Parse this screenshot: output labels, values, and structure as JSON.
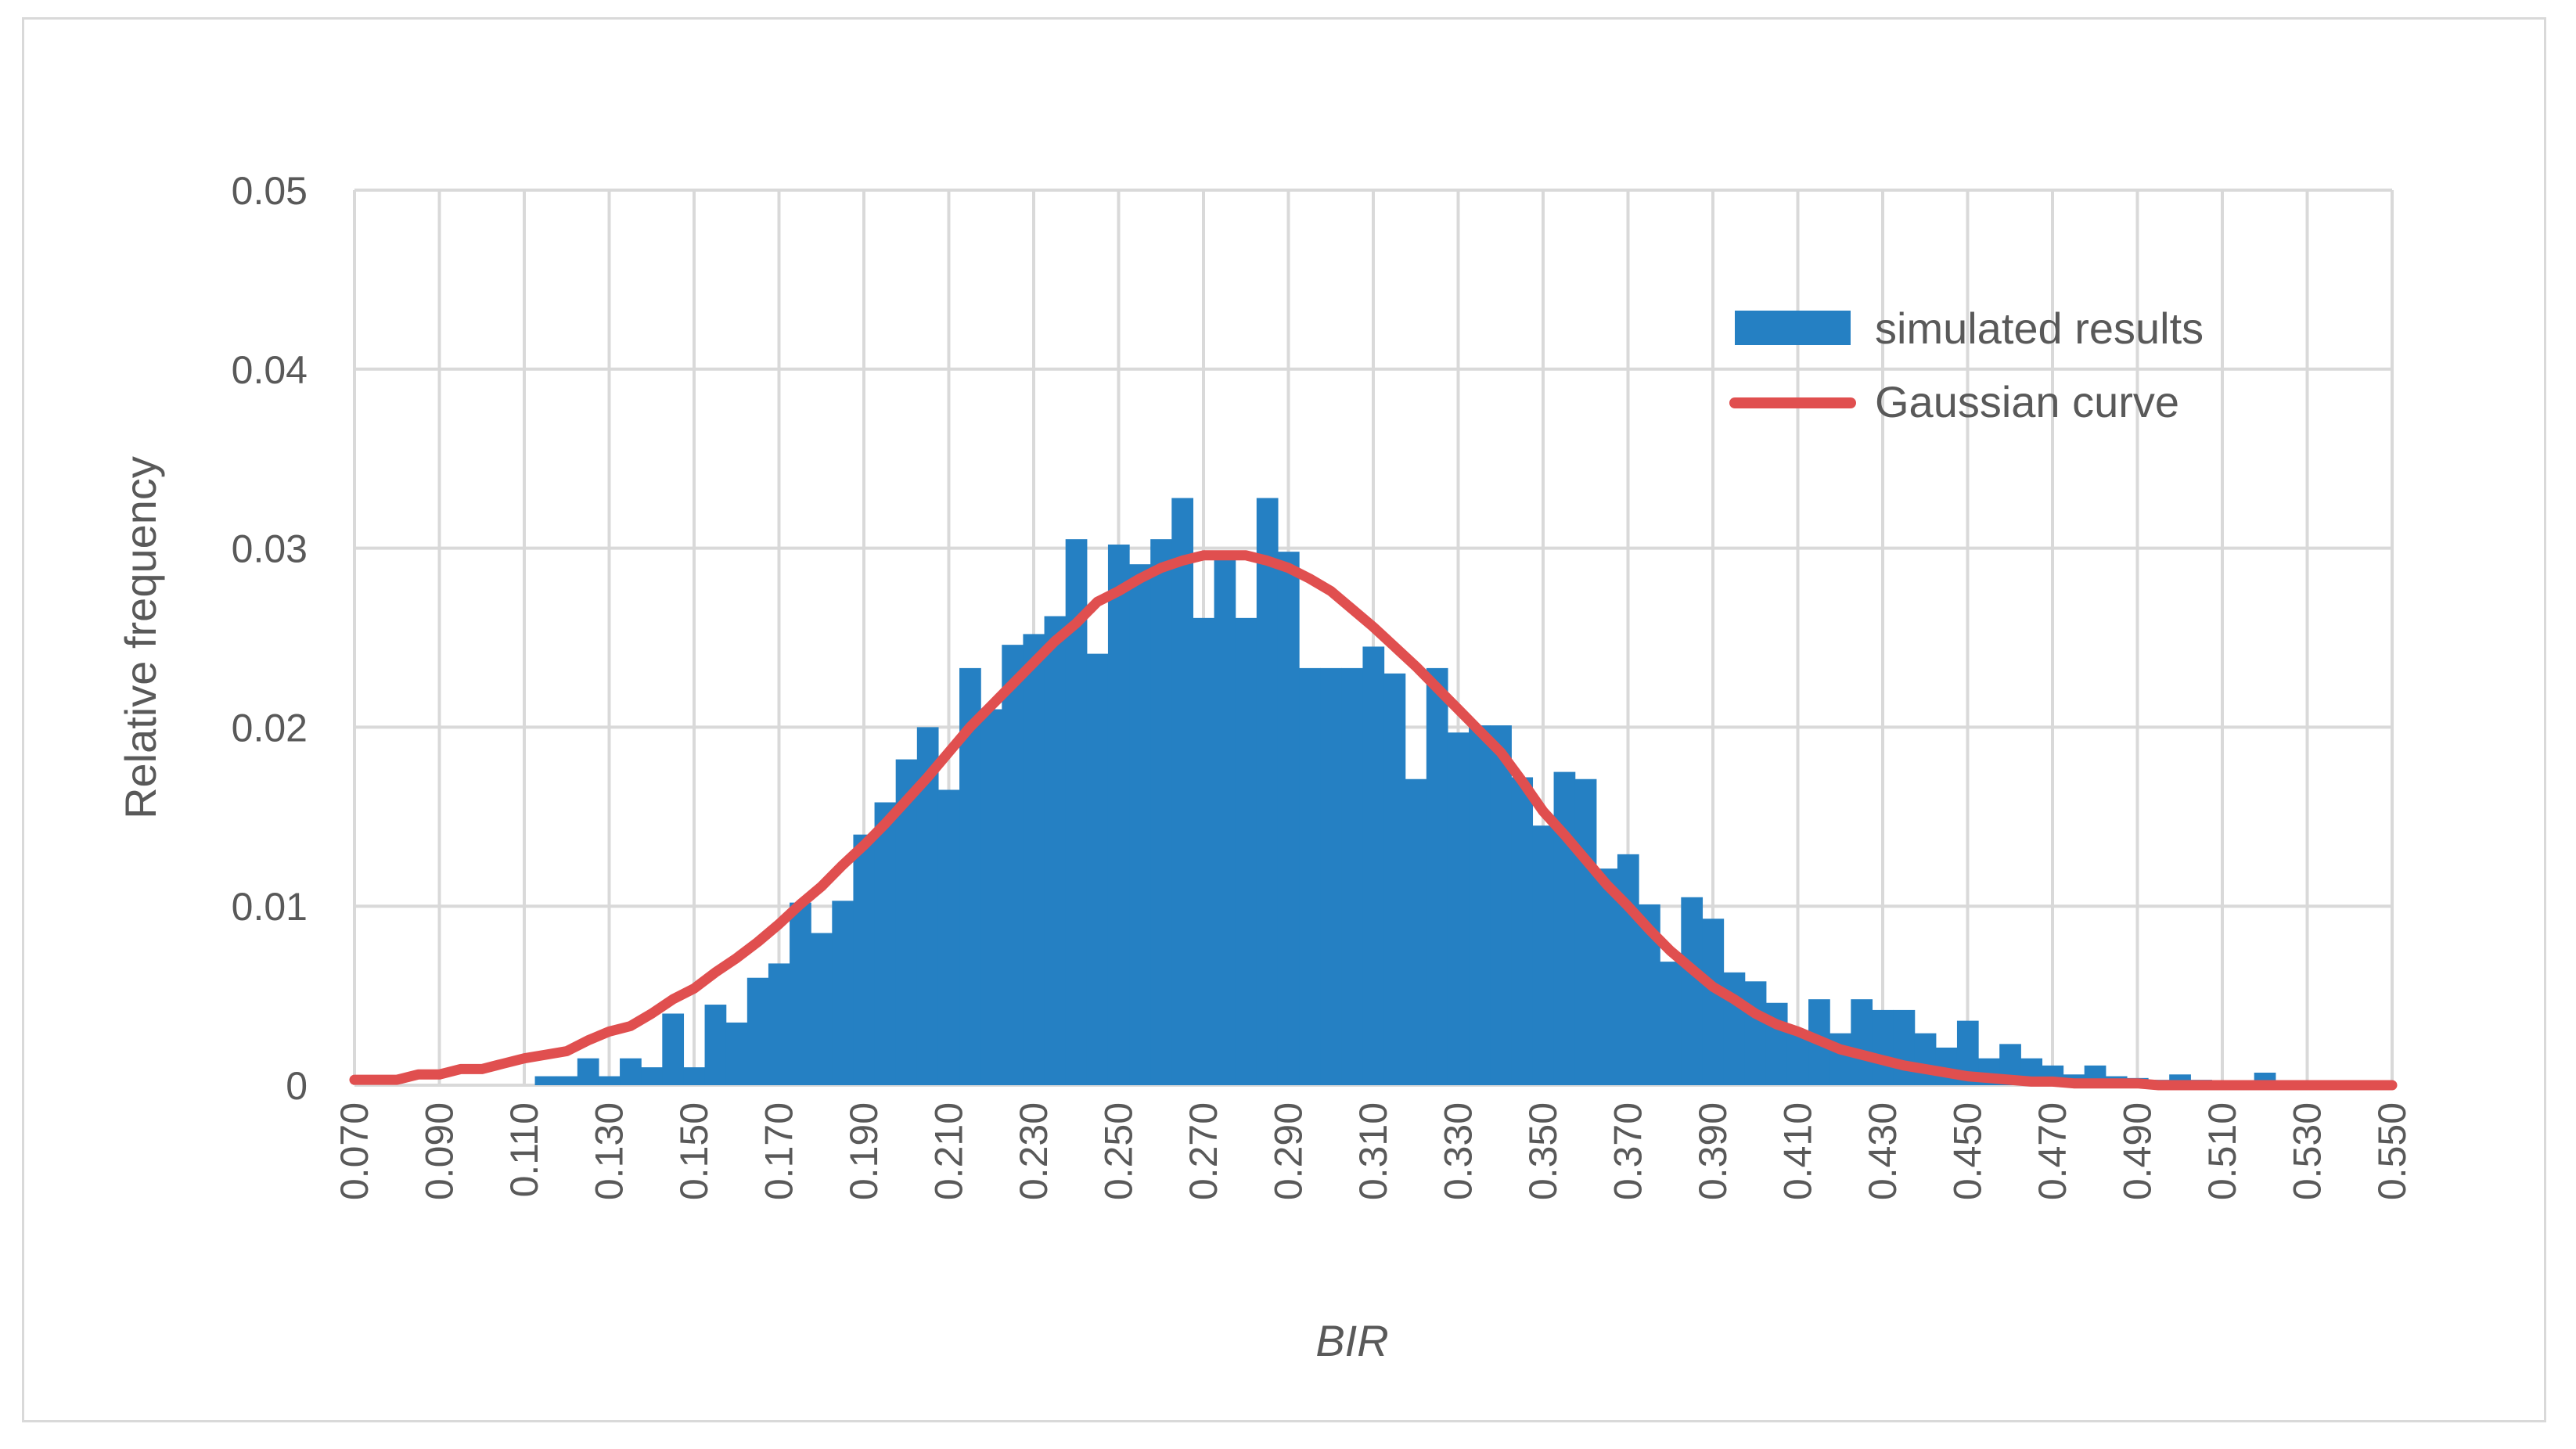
{
  "chart_data": {
    "type": "bar",
    "title": "",
    "xlabel": "BIR",
    "ylabel": "Relative frequency",
    "ylim": [
      0,
      0.05
    ],
    "yticks": [
      "0",
      "0.01",
      "0.02",
      "0.03",
      "0.04",
      "0.05"
    ],
    "grid": true,
    "legend_position": "top-right",
    "categories": [
      "0.070",
      "0.075",
      "0.080",
      "0.085",
      "0.090",
      "0.095",
      "0.100",
      "0.105",
      "0.110",
      "0.115",
      "0.120",
      "0.125",
      "0.130",
      "0.135",
      "0.140",
      "0.145",
      "0.150",
      "0.155",
      "0.160",
      "0.165",
      "0.170",
      "0.175",
      "0.180",
      "0.185",
      "0.190",
      "0.195",
      "0.200",
      "0.205",
      "0.210",
      "0.215",
      "0.220",
      "0.225",
      "0.230",
      "0.235",
      "0.240",
      "0.245",
      "0.250",
      "0.255",
      "0.260",
      "0.265",
      "0.270",
      "0.275",
      "0.280",
      "0.285",
      "0.290",
      "0.295",
      "0.300",
      "0.305",
      "0.310",
      "0.315",
      "0.320",
      "0.325",
      "0.330",
      "0.335",
      "0.340",
      "0.345",
      "0.350",
      "0.355",
      "0.360",
      "0.365",
      "0.370",
      "0.375",
      "0.380",
      "0.385",
      "0.390",
      "0.395",
      "0.400",
      "0.405",
      "0.410",
      "0.415",
      "0.420",
      "0.425",
      "0.430",
      "0.435",
      "0.440",
      "0.445",
      "0.450",
      "0.455",
      "0.460",
      "0.465",
      "0.470",
      "0.475",
      "0.480",
      "0.485",
      "0.490",
      "0.495",
      "0.500",
      "0.505",
      "0.510",
      "0.515",
      "0.520",
      "0.525",
      "0.530",
      "0.535",
      "0.540",
      "0.545",
      "0.550"
    ],
    "xtick_labels": [
      "0.070",
      "0.090",
      "0.110",
      "0.130",
      "0.150",
      "0.170",
      "0.190",
      "0.210",
      "0.230",
      "0.250",
      "0.270",
      "0.290",
      "0.310",
      "0.330",
      "0.350",
      "0.370",
      "0.390",
      "0.410",
      "0.430",
      "0.450",
      "0.470",
      "0.490",
      "0.510",
      "0.530",
      "0.550"
    ],
    "series": [
      {
        "name": "simulated results",
        "kind": "bar",
        "color": "#2580c3",
        "values": [
          0,
          0,
          0,
          0,
          0,
          0,
          0,
          0,
          0,
          0.0005,
          0.0005,
          0.0015,
          0.0005,
          0.0015,
          0.001,
          0.004,
          0.001,
          0.0045,
          0.0035,
          0.006,
          0.0068,
          0.0102,
          0.0085,
          0.0103,
          0.014,
          0.0158,
          0.0182,
          0.02,
          0.0165,
          0.0233,
          0.021,
          0.0246,
          0.0252,
          0.0262,
          0.0305,
          0.0241,
          0.0302,
          0.0291,
          0.0305,
          0.0328,
          0.0261,
          0.0295,
          0.0261,
          0.0328,
          0.0298,
          0.0233,
          0.0233,
          0.0233,
          0.0245,
          0.023,
          0.0171,
          0.0233,
          0.0197,
          0.0201,
          0.0201,
          0.0172,
          0.0145,
          0.0175,
          0.0171,
          0.0121,
          0.0129,
          0.0101,
          0.0069,
          0.0105,
          0.0093,
          0.0063,
          0.0058,
          0.0046,
          0.0029,
          0.0048,
          0.0029,
          0.0048,
          0.0042,
          0.0042,
          0.0029,
          0.0021,
          0.0036,
          0.0015,
          0.0023,
          0.0015,
          0.0011,
          0.0006,
          0.0011,
          0.0005,
          0.0004,
          0.0003,
          0.0006,
          0.0003,
          0.0002,
          0.0002,
          0.0007,
          0.0002,
          0,
          0,
          0,
          0,
          0
        ]
      },
      {
        "name": "Gaussian curve",
        "kind": "line",
        "color": "#e04f4f",
        "values": [
          0.0003,
          0.0003,
          0.0003,
          0.0006,
          0.0006,
          0.0009,
          0.0009,
          0.0012,
          0.0015,
          0.0017,
          0.0019,
          0.0025,
          0.003,
          0.0033,
          0.004,
          0.0048,
          0.0054,
          0.0063,
          0.0071,
          0.008,
          0.009,
          0.0101,
          0.0111,
          0.0123,
          0.0134,
          0.0146,
          0.0159,
          0.0172,
          0.0186,
          0.02,
          0.0212,
          0.0224,
          0.0236,
          0.0248,
          0.0258,
          0.027,
          0.0276,
          0.0283,
          0.0289,
          0.0293,
          0.0296,
          0.0296,
          0.0296,
          0.0293,
          0.0289,
          0.0283,
          0.0276,
          0.0266,
          0.0256,
          0.0245,
          0.0234,
          0.0222,
          0.021,
          0.0198,
          0.0186,
          0.017,
          0.0153,
          0.014,
          0.0126,
          0.0112,
          0.01,
          0.0087,
          0.0075,
          0.0065,
          0.0055,
          0.0048,
          0.004,
          0.0034,
          0.003,
          0.0025,
          0.002,
          0.0017,
          0.0014,
          0.0011,
          0.0009,
          0.0007,
          0.0005,
          0.0004,
          0.0003,
          0.0002,
          0.0002,
          0.0001,
          0.0001,
          0.0001,
          0.0001,
          0,
          0,
          0,
          0,
          0,
          0,
          0,
          0,
          0,
          0,
          0,
          0
        ]
      }
    ]
  }
}
